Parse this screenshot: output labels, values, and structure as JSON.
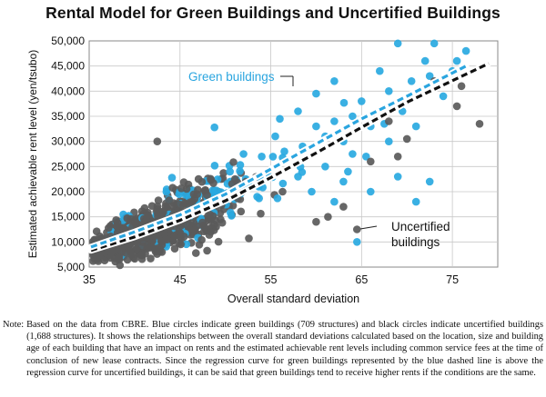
{
  "chart_data": {
    "type": "scatter",
    "title": "Rental Model for Green Buildings and Uncertified Buildings",
    "xlabel": "Overall standard deviation",
    "ylabel": "Estimated achievable rent level (yen/tsubo)",
    "xlim": [
      35,
      80
    ],
    "ylim": [
      5000,
      50000
    ],
    "xticks": [
      35,
      45,
      55,
      65,
      75
    ],
    "xtick_labels": [
      "35",
      "45",
      "55",
      "65",
      "75"
    ],
    "yticks": [
      5000,
      10000,
      15000,
      20000,
      25000,
      30000,
      35000,
      40000,
      45000,
      50000
    ],
    "ytick_labels": [
      "5,000",
      "10,000",
      "15,000",
      "20,000",
      "25,000",
      "30,000",
      "35,000",
      "40,000",
      "45,000",
      "50,000"
    ],
    "grid": true,
    "series": [
      {
        "name": "Green buildings",
        "kind": "regression",
        "color": "#2aa5df",
        "line_style": "dashed",
        "x": [
          35.2,
          40,
          45,
          50,
          55,
          60,
          65,
          70,
          76.5
        ],
        "y": [
          9000,
          12000,
          15400,
          19500,
          24500,
          29500,
          34500,
          39000,
          45000
        ]
      },
      {
        "name": "Uncertified buildings",
        "label_lines": [
          "Uncertified",
          "buildings"
        ],
        "kind": "regression",
        "color": "#111111",
        "line_style": "dashed",
        "x": [
          35.2,
          40,
          45,
          50,
          55,
          60,
          65,
          70,
          79
        ],
        "y": [
          8300,
          11000,
          14300,
          18200,
          22800,
          27700,
          32800,
          37800,
          45500
        ]
      }
    ],
    "point_groups": [
      {
        "name": "green",
        "color": "#29a9e1",
        "approx_count": 709,
        "sample_points": [
          [
            48.8,
            32800
          ],
          [
            52,
            21000
          ],
          [
            54,
            27000
          ],
          [
            55.5,
            31000
          ],
          [
            56.5,
            28000
          ],
          [
            58,
            36000
          ],
          [
            58.5,
            29000
          ],
          [
            60,
            33000
          ],
          [
            60,
            39500
          ],
          [
            61,
            25000
          ],
          [
            61,
            31000
          ],
          [
            62,
            42000
          ],
          [
            62,
            34000
          ],
          [
            63,
            22000
          ],
          [
            63,
            30000
          ],
          [
            63.5,
            24000
          ],
          [
            64,
            35000
          ],
          [
            64.5,
            10000
          ],
          [
            65,
            38000
          ],
          [
            65.5,
            27000
          ],
          [
            66,
            33000
          ],
          [
            67,
            44000
          ],
          [
            68,
            40000
          ],
          [
            68,
            30000
          ],
          [
            69,
            23000
          ],
          [
            69.5,
            36000
          ],
          [
            70.5,
            42000
          ],
          [
            71,
            33000
          ],
          [
            72,
            46000
          ],
          [
            72.5,
            22000
          ],
          [
            72.5,
            43000
          ],
          [
            73,
            49500
          ],
          [
            74,
            39000
          ],
          [
            74.5,
            50000
          ],
          [
            75,
            44000
          ],
          [
            75.5,
            46000
          ],
          [
            76.5,
            48000
          ],
          [
            69,
            49500
          ],
          [
            71,
            18000
          ],
          [
            62,
            18000
          ],
          [
            66,
            20000
          ],
          [
            58,
            23000
          ],
          [
            56,
            34500
          ],
          [
            52,
            27500
          ],
          [
            50.5,
            24000
          ],
          [
            53.5,
            19000
          ],
          [
            59.5,
            20000
          ],
          [
            64,
            27500
          ],
          [
            67.5,
            33500
          ]
        ]
      },
      {
        "name": "uncertified",
        "color": "#5a5a5a",
        "approx_count": 1688,
        "sample_points": [
          [
            42.5,
            30000
          ],
          [
            56.3,
            20000
          ],
          [
            61.3,
            15000
          ],
          [
            64.5,
            12500
          ],
          [
            60,
            14000
          ],
          [
            66,
            26000
          ],
          [
            69,
            27000
          ],
          [
            75.5,
            37000
          ],
          [
            76,
            41000
          ],
          [
            78,
            33500
          ],
          [
            70,
            30500
          ],
          [
            73,
            42000
          ],
          [
            68,
            34000
          ],
          [
            63,
            17000
          ]
        ]
      }
    ],
    "annotations": [
      {
        "text": "Green buildings",
        "target_series": "Green buildings"
      },
      {
        "text": "Uncertified buildings",
        "target_series": "Uncertified buildings"
      }
    ]
  },
  "note": {
    "prefix": "Note:",
    "text": "Based on the data from CBRE. Blue circles indicate green buildings (709 structures) and black circles indicate uncertified buildings (1,688 structures). It shows the relationships between the overall standard deviations calculated based on the location, size and building age of each building that have an impact on rents and the estimated achievable rent levels including common service fees at the time of conclusion of new lease contracts. Since the regression curve for green buildings represented by the blue dashed line is above the regression curve for uncertified buildings, it can be said that green buildings tend to receive higher rents if the conditions are the same."
  }
}
